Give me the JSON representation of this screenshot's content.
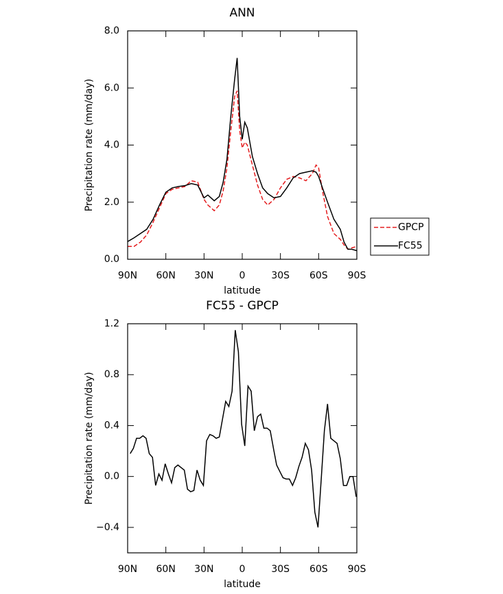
{
  "chart_data": [
    {
      "type": "line",
      "title": "ANN",
      "xlabel": "latitude",
      "ylabel": "Precipitation rate (mm/day)",
      "x": [
        90,
        85,
        80,
        75,
        70,
        65,
        60,
        55,
        50,
        45,
        40,
        35,
        30,
        27,
        22,
        18,
        15,
        12,
        9,
        6,
        4,
        2,
        0,
        -2,
        -4,
        -8,
        -12,
        -16,
        -20,
        -25,
        -30,
        -35,
        -40,
        -45,
        -50,
        -55,
        -58,
        -60,
        -63,
        -67,
        -72,
        -77,
        -80,
        -83,
        -86,
        -90
      ],
      "series": [
        {
          "name": "GPCP",
          "color": "#e41a1c",
          "dash": true,
          "values": [
            0.45,
            0.45,
            0.6,
            0.85,
            1.3,
            1.8,
            2.3,
            2.45,
            2.5,
            2.55,
            2.75,
            2.7,
            2.1,
            1.9,
            1.7,
            1.9,
            2.4,
            3.2,
            4.5,
            5.7,
            5.9,
            4.5,
            3.9,
            4.1,
            4.0,
            3.3,
            2.6,
            2.1,
            1.9,
            2.1,
            2.5,
            2.8,
            2.9,
            2.85,
            2.75,
            3.0,
            3.3,
            3.2,
            2.4,
            1.5,
            0.9,
            0.7,
            0.5,
            0.35,
            0.4,
            0.45
          ]
        },
        {
          "name": "FC55",
          "color": "#000000",
          "dash": false,
          "values": [
            0.62,
            0.75,
            0.9,
            1.05,
            1.4,
            1.9,
            2.35,
            2.5,
            2.55,
            2.58,
            2.65,
            2.6,
            2.15,
            2.25,
            2.05,
            2.2,
            2.7,
            3.5,
            5.0,
            6.3,
            7.05,
            5.0,
            4.2,
            4.8,
            4.6,
            3.6,
            3.0,
            2.5,
            2.3,
            2.15,
            2.2,
            2.5,
            2.85,
            3.0,
            3.05,
            3.1,
            3.05,
            2.9,
            2.5,
            2.0,
            1.4,
            1.05,
            0.6,
            0.35,
            0.35,
            0.3
          ]
        }
      ],
      "xlim": [
        90,
        -90
      ],
      "xticks": [
        {
          "value": 90,
          "label": "90N"
        },
        {
          "value": 60,
          "label": "60N"
        },
        {
          "value": 30,
          "label": "30N"
        },
        0,
        {
          "value": -30,
          "label": "30S"
        },
        {
          "value": -60,
          "label": "60S"
        },
        {
          "value": -90,
          "label": "90S"
        }
      ],
      "ylim": [
        0,
        8
      ],
      "yticks": [
        {
          "value": 0,
          "label": "0.0"
        },
        {
          "value": 2,
          "label": "2.0"
        },
        {
          "value": 4,
          "label": "4.0"
        },
        {
          "value": 6,
          "label": "6.0"
        },
        {
          "value": 8,
          "label": "8.0"
        }
      ],
      "legend": "outside right"
    },
    {
      "type": "line",
      "title": "FC55 - GPCP",
      "xlabel": "latitude",
      "ylabel": "Precipitation rate (mm/day)",
      "x": [
        88,
        85.5,
        83,
        80.5,
        78,
        75.5,
        73,
        70.5,
        68,
        65.5,
        63,
        60.5,
        58,
        55.5,
        53,
        50.5,
        48,
        45.5,
        43,
        40.5,
        38,
        35.5,
        33,
        30.5,
        28,
        25.5,
        23,
        20.5,
        18,
        15.5,
        13,
        10.5,
        8,
        5.5,
        3,
        0.5,
        -2,
        -4.5,
        -7,
        -9.5,
        -12,
        -14.5,
        -17,
        -19.5,
        -22,
        -24.5,
        -27,
        -29.5,
        -32,
        -34.5,
        -37,
        -39.5,
        -42,
        -44.5,
        -47,
        -49.5,
        -52,
        -54.5,
        -57,
        -59.5,
        -62,
        -64.5,
        -67,
        -69.5,
        -72,
        -74.5,
        -77,
        -79.5,
        -82,
        -84.5,
        -87,
        -89.5
      ],
      "series": [
        {
          "color": "#000000",
          "dash": false,
          "values": [
            0.18,
            0.22,
            0.3,
            0.3,
            0.32,
            0.3,
            0.18,
            0.15,
            -0.07,
            0.02,
            -0.03,
            0.1,
            0.02,
            -0.05,
            0.07,
            0.09,
            0.07,
            0.05,
            -0.1,
            -0.12,
            -0.11,
            0.05,
            -0.03,
            -0.07,
            0.28,
            0.33,
            0.32,
            0.3,
            0.31,
            0.45,
            0.59,
            0.55,
            0.67,
            1.15,
            0.98,
            0.41,
            0.24,
            0.71,
            0.67,
            0.36,
            0.47,
            0.49,
            0.38,
            0.38,
            0.36,
            0.22,
            0.09,
            0.04,
            -0.01,
            -0.02,
            -0.02,
            -0.07,
            -0.01,
            0.08,
            0.15,
            0.26,
            0.21,
            0.05,
            -0.28,
            -0.4,
            -0.03,
            0.36,
            0.57,
            0.3,
            0.28,
            0.26,
            0.14,
            -0.07,
            -0.07,
            0,
            0,
            -0.16
          ]
        }
      ],
      "xlim": [
        90,
        -90
      ],
      "xticks": [
        {
          "value": 90,
          "label": "90N"
        },
        {
          "value": 60,
          "label": "60N"
        },
        {
          "value": 30,
          "label": "30N"
        },
        0,
        {
          "value": -30,
          "label": "30S"
        },
        {
          "value": -60,
          "label": "60S"
        },
        {
          "value": -90,
          "label": "90S"
        }
      ],
      "ylim": [
        -0.6,
        1.2
      ],
      "yticks": [
        {
          "value": -0.4,
          "label": "−0.4"
        },
        {
          "value": 0,
          "label": "0.0"
        },
        0.4,
        0.8,
        1.2
      ]
    }
  ]
}
